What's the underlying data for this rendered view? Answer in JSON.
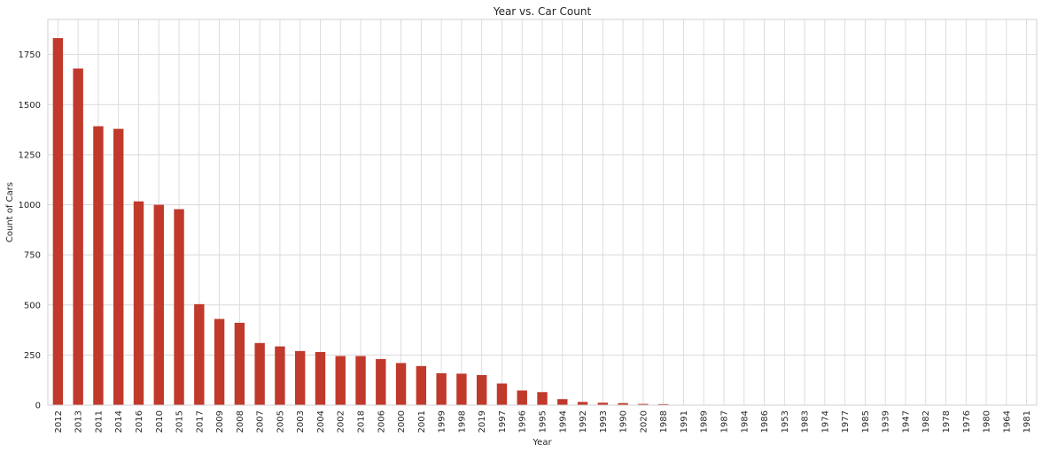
{
  "chart_data": {
    "type": "bar",
    "title": "Year vs. Car Count",
    "xlabel": "Year",
    "ylabel": "Count of Cars",
    "categories": [
      "2012",
      "2013",
      "2011",
      "2014",
      "2016",
      "2010",
      "2015",
      "2017",
      "2009",
      "2008",
      "2007",
      "2005",
      "2003",
      "2004",
      "2002",
      "2018",
      "2006",
      "2000",
      "2001",
      "1999",
      "1998",
      "2019",
      "1997",
      "1996",
      "1995",
      "1994",
      "1992",
      "1993",
      "1990",
      "2020",
      "1988",
      "1991",
      "1989",
      "1987",
      "1984",
      "1986",
      "1953",
      "1983",
      "1974",
      "1977",
      "1985",
      "1939",
      "1947",
      "1982",
      "1978",
      "1976",
      "1980",
      "1964",
      "1981"
    ],
    "values": [
      1832,
      1680,
      1392,
      1379,
      1017,
      1000,
      978,
      504,
      430,
      411,
      310,
      293,
      270,
      265,
      245,
      245,
      230,
      210,
      195,
      159,
      157,
      150,
      108,
      73,
      65,
      30,
      16,
      12,
      10,
      6,
      5,
      2,
      1,
      1,
      1,
      1,
      1,
      1,
      1,
      1,
      1,
      1,
      1,
      1,
      1,
      1,
      1,
      1,
      1
    ],
    "ylim": [
      0,
      1925
    ],
    "yticks": [
      0,
      250,
      500,
      750,
      1000,
      1250,
      1500,
      1750
    ],
    "bar_color": "#c0392b",
    "grid": true
  }
}
